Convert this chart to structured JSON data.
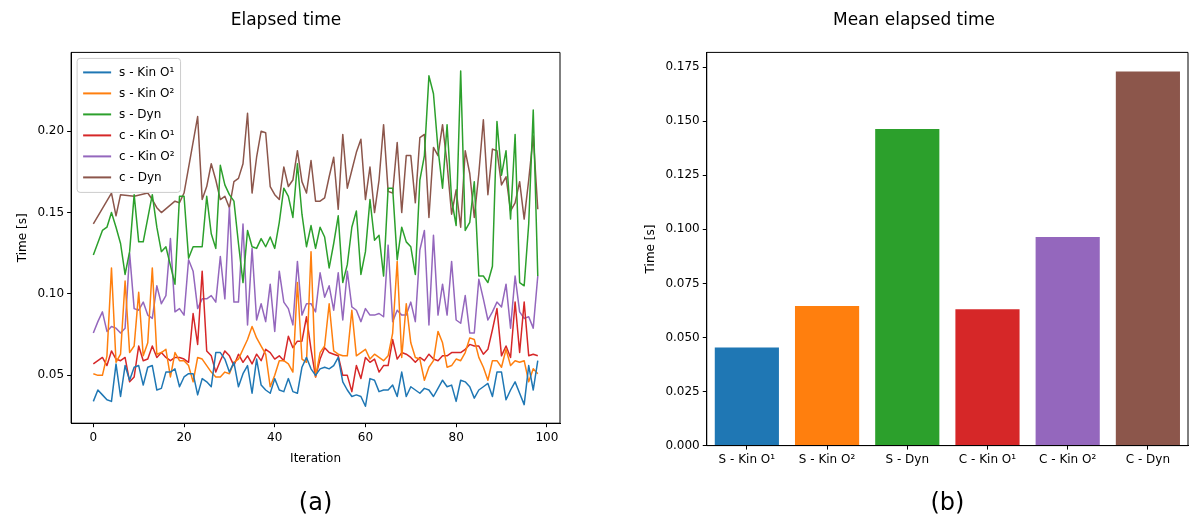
{
  "chart_data": [
    {
      "type": "line",
      "title": "Elapsed time",
      "xlabel": "Iteration",
      "ylabel": "Time [s]",
      "annotations": [
        "(a)"
      ],
      "legend": "top left",
      "grid": false,
      "marker": "none",
      "line_style": "solid",
      "x": [
        0,
        1,
        2,
        3,
        4,
        5,
        6,
        7,
        8,
        9,
        10,
        11,
        12,
        13,
        14,
        15,
        16,
        17,
        18,
        19,
        20,
        21,
        22,
        23,
        24,
        25,
        26,
        27,
        28,
        29,
        30,
        31,
        32,
        33,
        34,
        35,
        36,
        37,
        38,
        39,
        40,
        41,
        42,
        43,
        44,
        45,
        46,
        47,
        48,
        49,
        50,
        51,
        52,
        53,
        54,
        55,
        56,
        57,
        58,
        59,
        60,
        61,
        62,
        63,
        64,
        65,
        66,
        67,
        68,
        69,
        70,
        71,
        72,
        73,
        74,
        75,
        76,
        77,
        78,
        79,
        80,
        81,
        82,
        83,
        84,
        85,
        86,
        87,
        88,
        89,
        90,
        91,
        92,
        93,
        94,
        95,
        96,
        97,
        98
      ],
      "xlim": [
        -4.9,
        102.9
      ],
      "xticks": [
        0,
        20,
        40,
        60,
        80,
        100
      ],
      "ylim": [
        0.0206,
        0.2484
      ],
      "yticks": [
        {
          "value": 0.05,
          "label": "0.05"
        },
        {
          "value": 0.1,
          "label": "0.10"
        },
        {
          "value": 0.15,
          "label": "0.15"
        },
        {
          "value": 0.2,
          "label": "0.20"
        }
      ],
      "series": [
        {
          "name": "s - Kin O¹",
          "color": "#1f77b4",
          "values": [
            0.034,
            0.041,
            0.038,
            0.035,
            0.034,
            0.057,
            0.037,
            0.056,
            0.047,
            0.055,
            0.056,
            0.044,
            0.055,
            0.056,
            0.041,
            0.042,
            0.052,
            0.052,
            0.054,
            0.043,
            0.049,
            0.051,
            0.051,
            0.038,
            0.048,
            0.046,
            0.043,
            0.064,
            0.064,
            0.06,
            0.052,
            0.058,
            0.043,
            0.051,
            0.056,
            0.039,
            0.06,
            0.044,
            0.041,
            0.039,
            0.048,
            0.041,
            0.04,
            0.048,
            0.04,
            0.039,
            0.055,
            0.061,
            0.054,
            0.05,
            0.054,
            0.055,
            0.054,
            0.056,
            0.061,
            0.046,
            0.041,
            0.037,
            0.038,
            0.037,
            0.031,
            0.048,
            0.047,
            0.04,
            0.041,
            0.041,
            0.044,
            0.037,
            0.052,
            0.037,
            0.043,
            0.041,
            0.039,
            0.042,
            0.041,
            0.037,
            0.042,
            0.047,
            0.043,
            0.044,
            0.034,
            0.047,
            0.046,
            0.043,
            0.036,
            0.041,
            0.043,
            0.045,
            0.037,
            0.052,
            0.052,
            0.035,
            0.041,
            0.046,
            0.039,
            0.032,
            0.056,
            0.041,
            0.059
          ]
        },
        {
          "name": "s - Kin O²",
          "color": "#ff7f0e",
          "values": [
            0.051,
            0.05,
            0.05,
            0.062,
            0.116,
            0.058,
            0.063,
            0.108,
            0.064,
            0.068,
            0.101,
            0.062,
            0.07,
            0.116,
            0.063,
            0.064,
            0.066,
            0.049,
            0.064,
            0.059,
            0.059,
            0.056,
            0.046,
            0.061,
            0.06,
            0.056,
            0.052,
            0.049,
            0.049,
            0.052,
            0.051,
            0.058,
            0.06,
            0.066,
            0.072,
            0.08,
            0.073,
            0.068,
            0.063,
            0.043,
            0.05,
            0.059,
            0.059,
            0.057,
            0.052,
            0.107,
            0.06,
            0.058,
            0.126,
            0.049,
            0.064,
            0.068,
            0.094,
            0.065,
            0.063,
            0.062,
            0.062,
            0.09,
            0.062,
            0.064,
            0.066,
            0.06,
            0.063,
            0.061,
            0.059,
            0.062,
            0.076,
            0.12,
            0.061,
            0.094,
            0.07,
            0.061,
            0.06,
            0.047,
            0.055,
            0.059,
            0.077,
            0.07,
            0.055,
            0.056,
            0.06,
            0.059,
            0.064,
            0.073,
            0.072,
            0.061,
            0.055,
            0.047,
            0.059,
            0.059,
            0.055,
            0.066,
            0.056,
            0.059,
            0.058,
            0.059,
            0.046,
            0.054,
            0.051
          ]
        },
        {
          "name": "s - Dyn",
          "color": "#2ca02c",
          "values": [
            0.124,
            null,
            0.139,
            0.141,
            0.15,
            0.141,
            0.131,
            0.112,
            0.126,
            0.161,
            0.132,
            0.132,
            null,
            0.161,
            0.141,
            0.126,
            0.129,
            null,
            0.106,
            0.16,
            0.16,
            0.122,
            0.129,
            0.129,
            0.129,
            0.16,
            0.137,
            0.128,
            0.179,
            0.167,
            0.161,
            0.157,
            0.131,
            0.107,
            0.139,
            0.129,
            0.128,
            0.134,
            0.129,
            0.135,
            0.128,
            0.144,
            0.165,
            0.16,
            0.147,
            0.18,
            0.149,
            0.129,
            0.142,
            0.128,
            0.141,
            0.135,
            0.116,
            0.131,
            0.148,
            0.107,
            0.118,
            0.141,
            0.151,
            0.112,
            0.126,
            0.158,
            0.133,
            0.136,
            0.111,
            0.165,
            0.165,
            0.121,
            0.141,
            0.132,
            0.129,
            0.112,
            0.17,
            0.185,
            0.234,
            0.223,
            0.189,
            0.165,
            0.204,
            0.158,
            0.142,
            0.237,
            0.139,
            0.144,
            0.169,
            0.111,
            0.111,
            0.107,
            0.117,
            0.206,
            0.173,
            0.188,
            0.146,
            0.198,
            0.107,
            0.105,
            0.143,
            0.213,
            0.111
          ]
        },
        {
          "name": "c - Kin O¹",
          "color": "#d62728",
          "values": [
            0.057,
            0.059,
            0.061,
            0.056,
            0.065,
            0.06,
            0.059,
            0.061,
            0.046,
            0.049,
            0.068,
            0.059,
            0.06,
            0.068,
            0.061,
            0.064,
            0.061,
            0.059,
            0.061,
            0.061,
            0.06,
            0.058,
            0.088,
            0.069,
            0.114,
            0.065,
            0.062,
            0.052,
            0.059,
            0.065,
            0.062,
            0.056,
            0.063,
            0.058,
            0.062,
            0.057,
            0.063,
            0.059,
            0.066,
            0.064,
            0.06,
            0.062,
            0.059,
            0.074,
            0.067,
            0.071,
            0.071,
            0.086,
            0.066,
            0.049,
            0.06,
            0.067,
            0.064,
            0.063,
            0.062,
            0.05,
            0.05,
            0.04,
            0.056,
            0.048,
            0.061,
            0.058,
            0.06,
            0.052,
            0.056,
            0.056,
            0.072,
            0.06,
            0.064,
            0.063,
            0.061,
            0.058,
            0.061,
            0.059,
            0.063,
            0.06,
            0.059,
            0.062,
            0.062,
            0.064,
            0.064,
            0.064,
            0.066,
            0.069,
            0.068,
            0.068,
            0.063,
            0.066,
            0.078,
            0.091,
            0.062,
            0.068,
            0.061,
            0.095,
            0.064,
            0.095,
            0.062,
            0.063,
            0.062
          ]
        },
        {
          "name": "c - Kin O²",
          "color": "#9467bd",
          "values": [
            0.076,
            0.083,
            0.089,
            0.077,
            0.08,
            0.079,
            0.076,
            0.079,
            0.125,
            0.091,
            0.09,
            0.095,
            0.087,
            0.085,
            0.105,
            0.094,
            0.099,
            0.134,
            0.089,
            0.091,
            0.087,
            0.121,
            0.114,
            0.091,
            0.097,
            0.097,
            0.099,
            0.095,
            0.123,
            0.097,
            0.153,
            0.095,
            0.095,
            0.143,
            0.081,
            0.128,
            0.084,
            0.094,
            0.083,
            0.106,
            0.077,
            0.114,
            0.095,
            0.091,
            0.081,
            0.12,
            0.087,
            0.094,
            0.094,
            0.089,
            0.113,
            0.098,
            0.105,
            0.09,
            0.113,
            0.084,
            0.114,
            0.092,
            0.09,
            0.083,
            0.091,
            0.087,
            0.087,
            0.088,
            0.086,
            0.13,
            0.083,
            0.09,
            0.087,
            0.087,
            0.095,
            0.083,
            0.127,
            0.139,
            0.081,
            0.136,
            0.087,
            0.106,
            0.087,
            0.12,
            0.084,
            0.082,
            0.099,
            0.076,
            0.076,
            0.109,
            0.097,
            0.084,
            0.089,
            0.095,
            0.092,
            0.106,
            0.079,
            0.111,
            0.089,
            0.085,
            0.086,
            0.079,
            0.111
          ]
        },
        {
          "name": "c - Dyn",
          "color": "#8c564b",
          "values": [
            0.143,
            null,
            null,
            null,
            0.162,
            0.148,
            0.161,
            null,
            null,
            0.16,
            null,
            null,
            0.162,
            0.158,
            0.153,
            0.15,
            null,
            null,
            0.157,
            0.156,
            0.162,
            null,
            null,
            0.209,
            0.158,
            0.166,
            0.18,
            0.17,
            0.158,
            0.16,
            0.153,
            0.169,
            0.171,
            0.18,
            0.211,
            0.162,
            0.184,
            0.2,
            0.199,
            0.166,
            0.161,
            0.158,
            0.178,
            0.166,
            0.17,
            0.188,
            0.169,
            0.162,
            0.182,
            0.157,
            0.157,
            0.159,
            0.172,
            0.184,
            0.152,
            0.198,
            0.165,
            0.176,
            0.187,
            0.195,
            0.158,
            0.178,
            0.15,
            0.17,
            0.204,
            0.163,
            0.162,
            0.193,
            0.15,
            0.185,
            0.185,
            0.156,
            0.196,
            0.198,
            0.147,
            0.19,
            0.185,
            0.204,
            0.18,
            0.149,
            0.164,
            0.141,
            0.188,
            0.174,
            0.147,
            0.174,
            0.207,
            0.161,
            0.189,
            0.188,
            0.167,
            0.172,
            0.151,
            0.156,
            0.169,
            0.146,
            0.17,
            0.197,
            0.152
          ]
        }
      ]
    },
    {
      "type": "bar",
      "title": "Mean elapsed time",
      "ylabel": "Time [s]",
      "annotations": [
        "(b)"
      ],
      "grid": false,
      "categories": [
        "S - Kin O¹",
        "S - Kin O²",
        "S - Dyn",
        "C - Kin O¹",
        "C - Kin O²",
        "C - Dyn"
      ],
      "values": [
        0.0454,
        0.0645,
        0.1464,
        0.063,
        0.0964,
        0.173
      ],
      "colors": [
        "#1f77b4",
        "#ff7f0e",
        "#2ca02c",
        "#d62728",
        "#9467bd",
        "#8c564b"
      ],
      "ylim": [
        0,
        0.1818
      ],
      "yticks": [
        {
          "value": 0,
          "label": "0.000"
        },
        {
          "value": 0.025,
          "label": "0.025"
        },
        {
          "value": 0.05,
          "label": "0.050"
        },
        {
          "value": 0.075,
          "label": "0.075"
        },
        {
          "value": 0.1,
          "label": "0.100"
        },
        {
          "value": 0.125,
          "label": "0.125"
        },
        {
          "value": 0.15,
          "label": "0.150"
        },
        {
          "value": 0.175,
          "label": "0.175"
        }
      ]
    }
  ]
}
